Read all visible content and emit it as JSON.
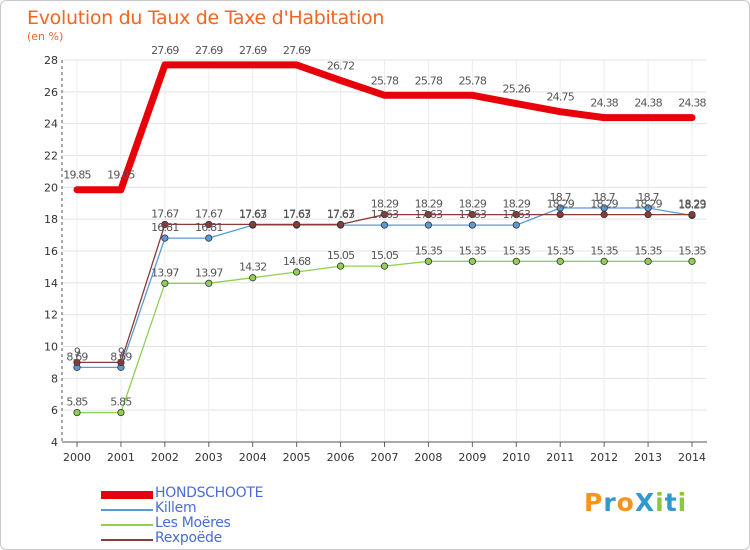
{
  "title": "Evolution du Taux de Taxe d'Habitation",
  "unit_label": "(en %)",
  "logo": {
    "text": "ProXiti",
    "letters": [
      "P",
      "r",
      "o",
      "X",
      "i",
      "t",
      "i"
    ],
    "colors": [
      "#f7941d",
      "#3399cc",
      "#f7941d",
      "#3399cc",
      "#8dc63f",
      "#3399cc",
      "#8dc63f"
    ]
  },
  "chart_data": {
    "type": "line",
    "title": "Evolution du Taux de Taxe d'Habitation",
    "ylabel": "(en %)",
    "xlabel": "",
    "x": [
      "2000",
      "2001",
      "2002",
      "2003",
      "2004",
      "2005",
      "2006",
      "2007",
      "2008",
      "2009",
      "2010",
      "2011",
      "2012",
      "2013",
      "2014"
    ],
    "ylim": [
      4,
      28
    ],
    "yticks": [
      4,
      6,
      8,
      10,
      12,
      14,
      16,
      18,
      20,
      22,
      24,
      26,
      28
    ],
    "grid": true,
    "legend_position": "bottom-left",
    "series": [
      {
        "name": "HONDSCHOOTE",
        "color": "#e8000b",
        "width": 7,
        "markers": false,
        "values": [
          19.85,
          19.85,
          27.69,
          27.69,
          27.69,
          27.69,
          26.72,
          25.78,
          25.78,
          25.78,
          25.26,
          24.75,
          24.38,
          24.38,
          24.38
        ],
        "labels": [
          "19.85",
          "19.85",
          "27.69",
          "27.69",
          "27.69",
          "27.69",
          "26.72",
          "25.78",
          "25.78",
          "25.78",
          "25.26",
          "24.75",
          "24.38",
          "24.38",
          "24.38"
        ]
      },
      {
        "name": "Killem",
        "color": "#5a9bd5",
        "width": 1.3,
        "markers": true,
        "values": [
          8.69,
          8.69,
          16.81,
          16.81,
          17.63,
          17.63,
          17.63,
          17.63,
          17.63,
          17.63,
          17.63,
          18.7,
          18.7,
          18.7,
          18.23
        ],
        "labels": [
          "8.69",
          "8.69",
          "16.81",
          "16.81",
          "17.63",
          "17.63",
          "17.63",
          "17.63",
          "17.63",
          "17.63",
          "17.63",
          "18.7",
          "18.7",
          "18.7",
          "18.23"
        ]
      },
      {
        "name": "Les Moëres",
        "color": "#8fd050",
        "width": 1.3,
        "markers": true,
        "values": [
          5.85,
          5.85,
          13.97,
          13.97,
          14.32,
          14.68,
          15.05,
          15.05,
          15.35,
          15.35,
          15.35,
          15.35,
          15.35,
          15.35,
          15.35
        ],
        "labels": [
          "5.85",
          "5.85",
          "13.97",
          "13.97",
          "14.32",
          "14.68",
          "15.05",
          "15.05",
          "15.35",
          "15.35",
          "15.35",
          "15.35",
          "15.35",
          "15.35",
          "15.35"
        ]
      },
      {
        "name": "Rexpoëde",
        "color": "#8b3a3a",
        "width": 1.3,
        "markers": true,
        "values": [
          9,
          9,
          17.67,
          17.67,
          17.67,
          17.67,
          17.67,
          18.29,
          18.29,
          18.29,
          18.29,
          18.29,
          18.29,
          18.29,
          18.29
        ],
        "labels": [
          "9",
          "9",
          "17.67",
          "17.67",
          "17.67",
          "17.67",
          "17.67",
          "18.29",
          "18.29",
          "18.29",
          "18.29",
          "18.29",
          "18.29",
          "18.29",
          "18.29"
        ]
      }
    ]
  }
}
